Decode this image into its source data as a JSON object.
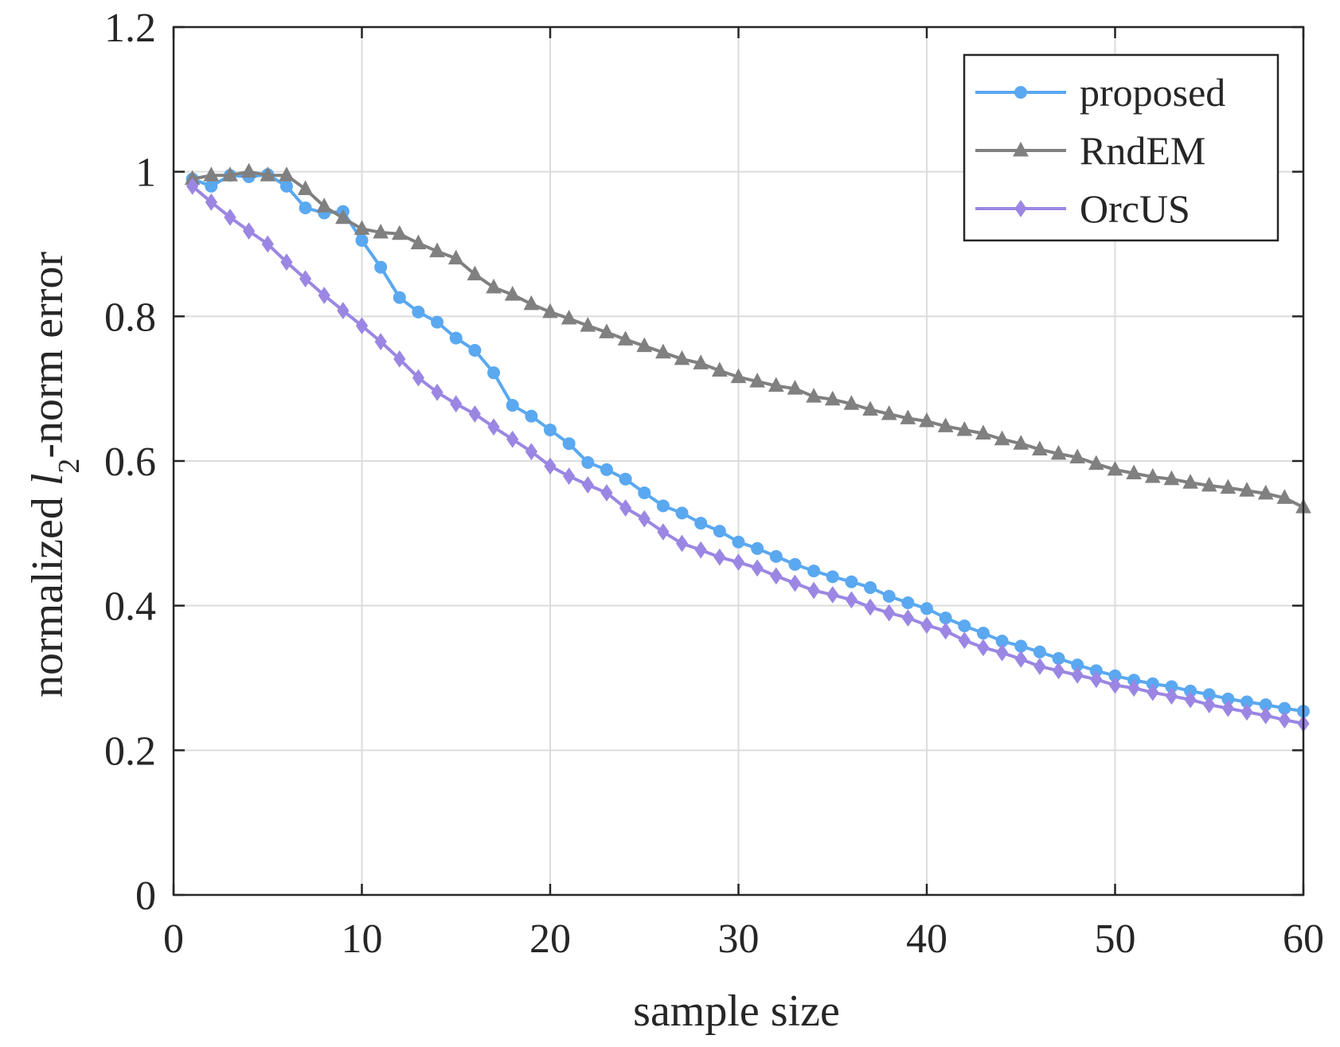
{
  "chart_data": {
    "type": "line",
    "title": "",
    "xlabel": "sample size",
    "ylabel": {
      "prefix": "normalized ",
      "var": "l",
      "sub": "2",
      "suffix": "-norm error"
    },
    "xlim": [
      0,
      60
    ],
    "ylim": [
      0,
      1.2
    ],
    "xticks": [
      "0",
      "10",
      "20",
      "30",
      "40",
      "50",
      "60"
    ],
    "yticks": [
      "0",
      "0.2",
      "0.4",
      "0.6",
      "0.8",
      "1",
      "1.2"
    ],
    "grid": true,
    "legend_position": "top-right",
    "x": [
      1,
      2,
      3,
      4,
      5,
      6,
      7,
      8,
      9,
      10,
      11,
      12,
      13,
      14,
      15,
      16,
      17,
      18,
      19,
      20,
      21,
      22,
      23,
      24,
      25,
      26,
      27,
      28,
      29,
      30,
      31,
      32,
      33,
      34,
      35,
      36,
      37,
      38,
      39,
      40,
      41,
      42,
      43,
      44,
      45,
      46,
      47,
      48,
      49,
      50,
      51,
      52,
      53,
      54,
      55,
      56,
      57,
      58,
      59,
      60
    ],
    "series": [
      {
        "name": "proposed",
        "color": "#5aa8f0",
        "marker": "circle",
        "values": [
          0.99,
          0.98,
          0.995,
          0.993,
          0.996,
          0.98,
          0.95,
          0.943,
          0.945,
          0.905,
          0.868,
          0.826,
          0.806,
          0.792,
          0.77,
          0.753,
          0.722,
          0.677,
          0.662,
          0.643,
          0.624,
          0.598,
          0.588,
          0.575,
          0.556,
          0.538,
          0.528,
          0.514,
          0.503,
          0.488,
          0.479,
          0.468,
          0.457,
          0.448,
          0.44,
          0.433,
          0.425,
          0.413,
          0.404,
          0.396,
          0.383,
          0.372,
          0.362,
          0.351,
          0.344,
          0.336,
          0.327,
          0.318,
          0.31,
          0.303,
          0.297,
          0.292,
          0.288,
          0.282,
          0.277,
          0.271,
          0.267,
          0.263,
          0.258,
          0.254
        ]
      },
      {
        "name": "RndEM",
        "color": "#808080",
        "marker": "triangle",
        "values": [
          0.99,
          0.995,
          0.995,
          1.0,
          0.995,
          0.995,
          0.976,
          0.952,
          0.936,
          0.921,
          0.916,
          0.914,
          0.901,
          0.89,
          0.88,
          0.858,
          0.84,
          0.83,
          0.817,
          0.806,
          0.797,
          0.787,
          0.778,
          0.768,
          0.759,
          0.75,
          0.741,
          0.735,
          0.725,
          0.716,
          0.71,
          0.704,
          0.7,
          0.689,
          0.685,
          0.679,
          0.671,
          0.665,
          0.659,
          0.655,
          0.648,
          0.643,
          0.638,
          0.63,
          0.624,
          0.616,
          0.61,
          0.605,
          0.596,
          0.588,
          0.583,
          0.578,
          0.575,
          0.57,
          0.566,
          0.563,
          0.559,
          0.555,
          0.549,
          0.536
        ]
      },
      {
        "name": "OrcUS",
        "color": "#9b86e3",
        "marker": "diamond",
        "values": [
          0.98,
          0.958,
          0.937,
          0.918,
          0.9,
          0.875,
          0.852,
          0.829,
          0.808,
          0.787,
          0.765,
          0.741,
          0.715,
          0.695,
          0.679,
          0.665,
          0.647,
          0.63,
          0.613,
          0.593,
          0.579,
          0.567,
          0.556,
          0.535,
          0.52,
          0.502,
          0.486,
          0.477,
          0.467,
          0.46,
          0.452,
          0.441,
          0.431,
          0.421,
          0.415,
          0.408,
          0.398,
          0.39,
          0.383,
          0.373,
          0.365,
          0.352,
          0.342,
          0.335,
          0.326,
          0.316,
          0.31,
          0.304,
          0.298,
          0.29,
          0.286,
          0.28,
          0.275,
          0.27,
          0.263,
          0.258,
          0.253,
          0.248,
          0.242,
          0.237
        ]
      }
    ]
  }
}
